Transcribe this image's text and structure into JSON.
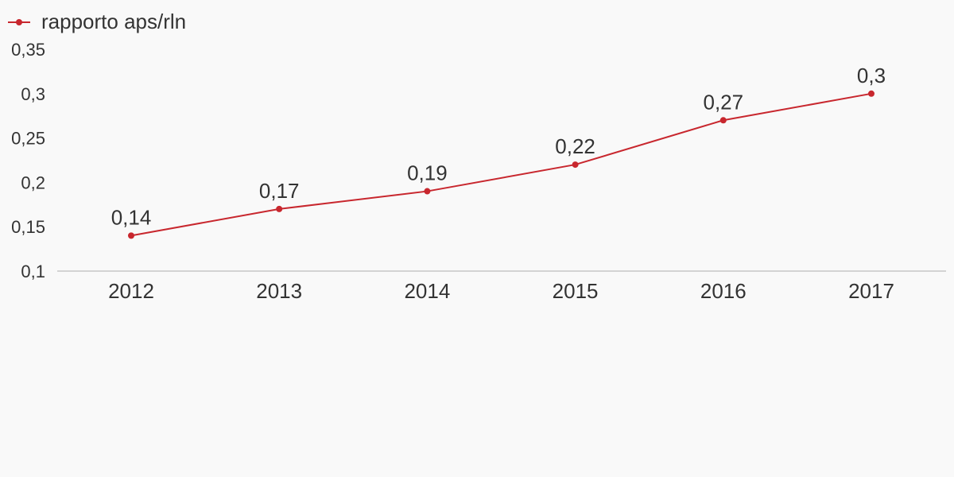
{
  "chart_data": {
    "type": "line",
    "title": "",
    "xlabel": "",
    "ylabel": "",
    "categories": [
      "2012",
      "2013",
      "2014",
      "2015",
      "2016",
      "2017"
    ],
    "series": [
      {
        "name": "rapporto aps/rln",
        "values": [
          0.14,
          0.17,
          0.19,
          0.22,
          0.27,
          0.3
        ],
        "labels": [
          "0,14",
          "0,17",
          "0,19",
          "0,22",
          "0,27",
          "0,3"
        ],
        "color": "#c8272e"
      }
    ],
    "ylim": [
      0.1,
      0.35
    ],
    "yticks": [
      0.1,
      0.15,
      0.2,
      0.25,
      0.3,
      0.35
    ],
    "ytick_labels": [
      "0,1",
      "0,15",
      "0,2",
      "0,25",
      "0,3",
      "0,35"
    ],
    "grid": false,
    "legend": "top-left",
    "axis_color": "#d3d3d3",
    "text_color": "#333333",
    "background": "#f9f9f9"
  }
}
